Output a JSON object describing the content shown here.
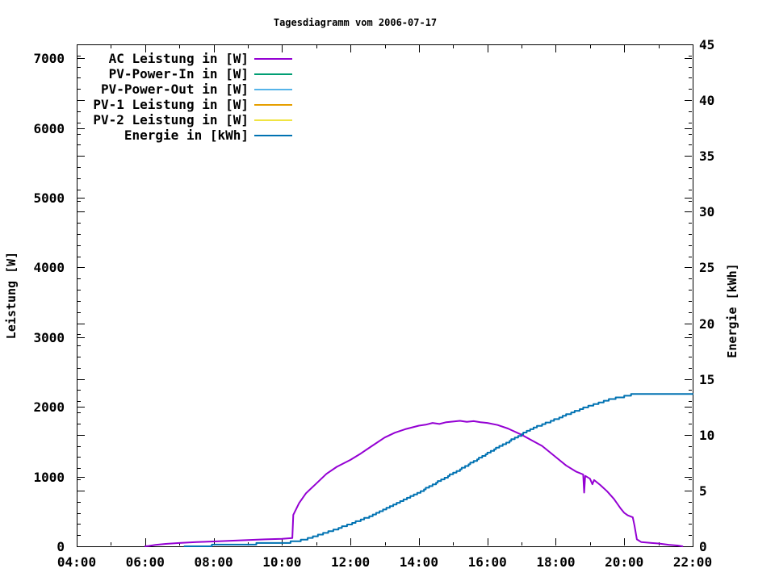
{
  "chart_data": {
    "type": "line",
    "title": "Tagesdiagramm vom 2006-07-17",
    "legend_position": "top-left-inside",
    "grid": false,
    "background_color": "#ffffff",
    "x_axis": {
      "label": "",
      "unit": "time",
      "range_hours": [
        4,
        22
      ],
      "major_tick_every_hours": 2,
      "minor_tick_every_hours": 1,
      "tick_labels": [
        "04:00",
        "06:00",
        "08:00",
        "10:00",
        "12:00",
        "14:00",
        "16:00",
        "18:00",
        "20:00",
        "22:00"
      ]
    },
    "y1_axis": {
      "label": "Leistung [W]",
      "range": [
        0,
        7200
      ],
      "ticks": [
        0,
        1000,
        2000,
        3000,
        4000,
        5000,
        6000,
        7000
      ]
    },
    "y2_axis": {
      "label": "Energie [kWh]",
      "range": [
        0,
        45
      ],
      "ticks": [
        0,
        5,
        10,
        15,
        20,
        25,
        30,
        35,
        40,
        45
      ],
      "minor_tick_step": 1
    },
    "series": [
      {
        "name": "AC Leistung in [W]",
        "color": "#9400D3",
        "axis": "y1",
        "stepped": false,
        "visible_in_plot": true,
        "points": [
          [
            6.0,
            0
          ],
          [
            6.1,
            5
          ],
          [
            6.3,
            20
          ],
          [
            6.6,
            35
          ],
          [
            7.0,
            48
          ],
          [
            7.5,
            60
          ],
          [
            8.0,
            70
          ],
          [
            8.5,
            80
          ],
          [
            9.0,
            90
          ],
          [
            9.5,
            100
          ],
          [
            10.0,
            108
          ],
          [
            10.3,
            118
          ],
          [
            10.33,
            450
          ],
          [
            10.5,
            620
          ],
          [
            10.7,
            760
          ],
          [
            11.0,
            900
          ],
          [
            11.3,
            1040
          ],
          [
            11.6,
            1140
          ],
          [
            12.0,
            1240
          ],
          [
            12.3,
            1330
          ],
          [
            12.6,
            1430
          ],
          [
            13.0,
            1560
          ],
          [
            13.3,
            1630
          ],
          [
            13.6,
            1680
          ],
          [
            14.0,
            1730
          ],
          [
            14.2,
            1745
          ],
          [
            14.4,
            1770
          ],
          [
            14.6,
            1755
          ],
          [
            14.8,
            1780
          ],
          [
            15.0,
            1790
          ],
          [
            15.2,
            1800
          ],
          [
            15.4,
            1785
          ],
          [
            15.6,
            1795
          ],
          [
            15.8,
            1780
          ],
          [
            16.0,
            1770
          ],
          [
            16.3,
            1740
          ],
          [
            16.6,
            1690
          ],
          [
            17.0,
            1600
          ],
          [
            17.3,
            1520
          ],
          [
            17.6,
            1440
          ],
          [
            18.0,
            1280
          ],
          [
            18.3,
            1160
          ],
          [
            18.6,
            1070
          ],
          [
            18.8,
            1030
          ],
          [
            18.83,
            770
          ],
          [
            18.86,
            1010
          ],
          [
            19.0,
            970
          ],
          [
            19.07,
            890
          ],
          [
            19.12,
            950
          ],
          [
            19.3,
            880
          ],
          [
            19.5,
            790
          ],
          [
            19.7,
            680
          ],
          [
            19.9,
            540
          ],
          [
            20.0,
            480
          ],
          [
            20.1,
            445
          ],
          [
            20.25,
            415
          ],
          [
            20.3,
            300
          ],
          [
            20.37,
            100
          ],
          [
            20.5,
            60
          ],
          [
            20.8,
            48
          ],
          [
            21.0,
            40
          ],
          [
            21.3,
            22
          ],
          [
            21.55,
            12
          ],
          [
            21.7,
            0
          ]
        ]
      },
      {
        "name": "PV-Power-In in [W]",
        "color": "#009E73",
        "axis": "y1",
        "stepped": false,
        "visible_in_plot": false,
        "points": []
      },
      {
        "name": "PV-Power-Out in [W]",
        "color": "#56B4E9",
        "axis": "y1",
        "stepped": false,
        "visible_in_plot": false,
        "points": []
      },
      {
        "name": "PV-1 Leistung in [W]",
        "color": "#E69F00",
        "axis": "y1",
        "stepped": false,
        "visible_in_plot": false,
        "points": []
      },
      {
        "name": "PV-2 Leistung in [W]",
        "color": "#F0E442",
        "axis": "y1",
        "stepped": false,
        "visible_in_plot": false,
        "points": []
      },
      {
        "name": "Energie in [kWh]",
        "color": "#0072B2",
        "axis": "y2",
        "stepped": true,
        "visible_in_plot": true,
        "points": [
          [
            7.15,
            0
          ],
          [
            7.6,
            0.05
          ],
          [
            8.0,
            0.08
          ],
          [
            8.5,
            0.14
          ],
          [
            9.0,
            0.2
          ],
          [
            9.5,
            0.26
          ],
          [
            10.0,
            0.33
          ],
          [
            10.33,
            0.4
          ],
          [
            10.6,
            0.58
          ],
          [
            11.0,
            0.95
          ],
          [
            11.5,
            1.45
          ],
          [
            12.0,
            2.0
          ],
          [
            12.5,
            2.6
          ],
          [
            13.0,
            3.3
          ],
          [
            13.5,
            4.05
          ],
          [
            14.0,
            4.85
          ],
          [
            14.5,
            5.7
          ],
          [
            15.0,
            6.55
          ],
          [
            15.5,
            7.45
          ],
          [
            16.0,
            8.35
          ],
          [
            16.5,
            9.2
          ],
          [
            17.0,
            10.05
          ],
          [
            17.5,
            10.8
          ],
          [
            18.0,
            11.4
          ],
          [
            18.5,
            12.05
          ],
          [
            19.0,
            12.6
          ],
          [
            19.5,
            13.1
          ],
          [
            20.0,
            13.45
          ],
          [
            20.2,
            13.58
          ],
          [
            20.37,
            13.68
          ],
          [
            20.6,
            13.7
          ],
          [
            21.0,
            13.7
          ],
          [
            22.0,
            13.7
          ]
        ]
      }
    ]
  }
}
